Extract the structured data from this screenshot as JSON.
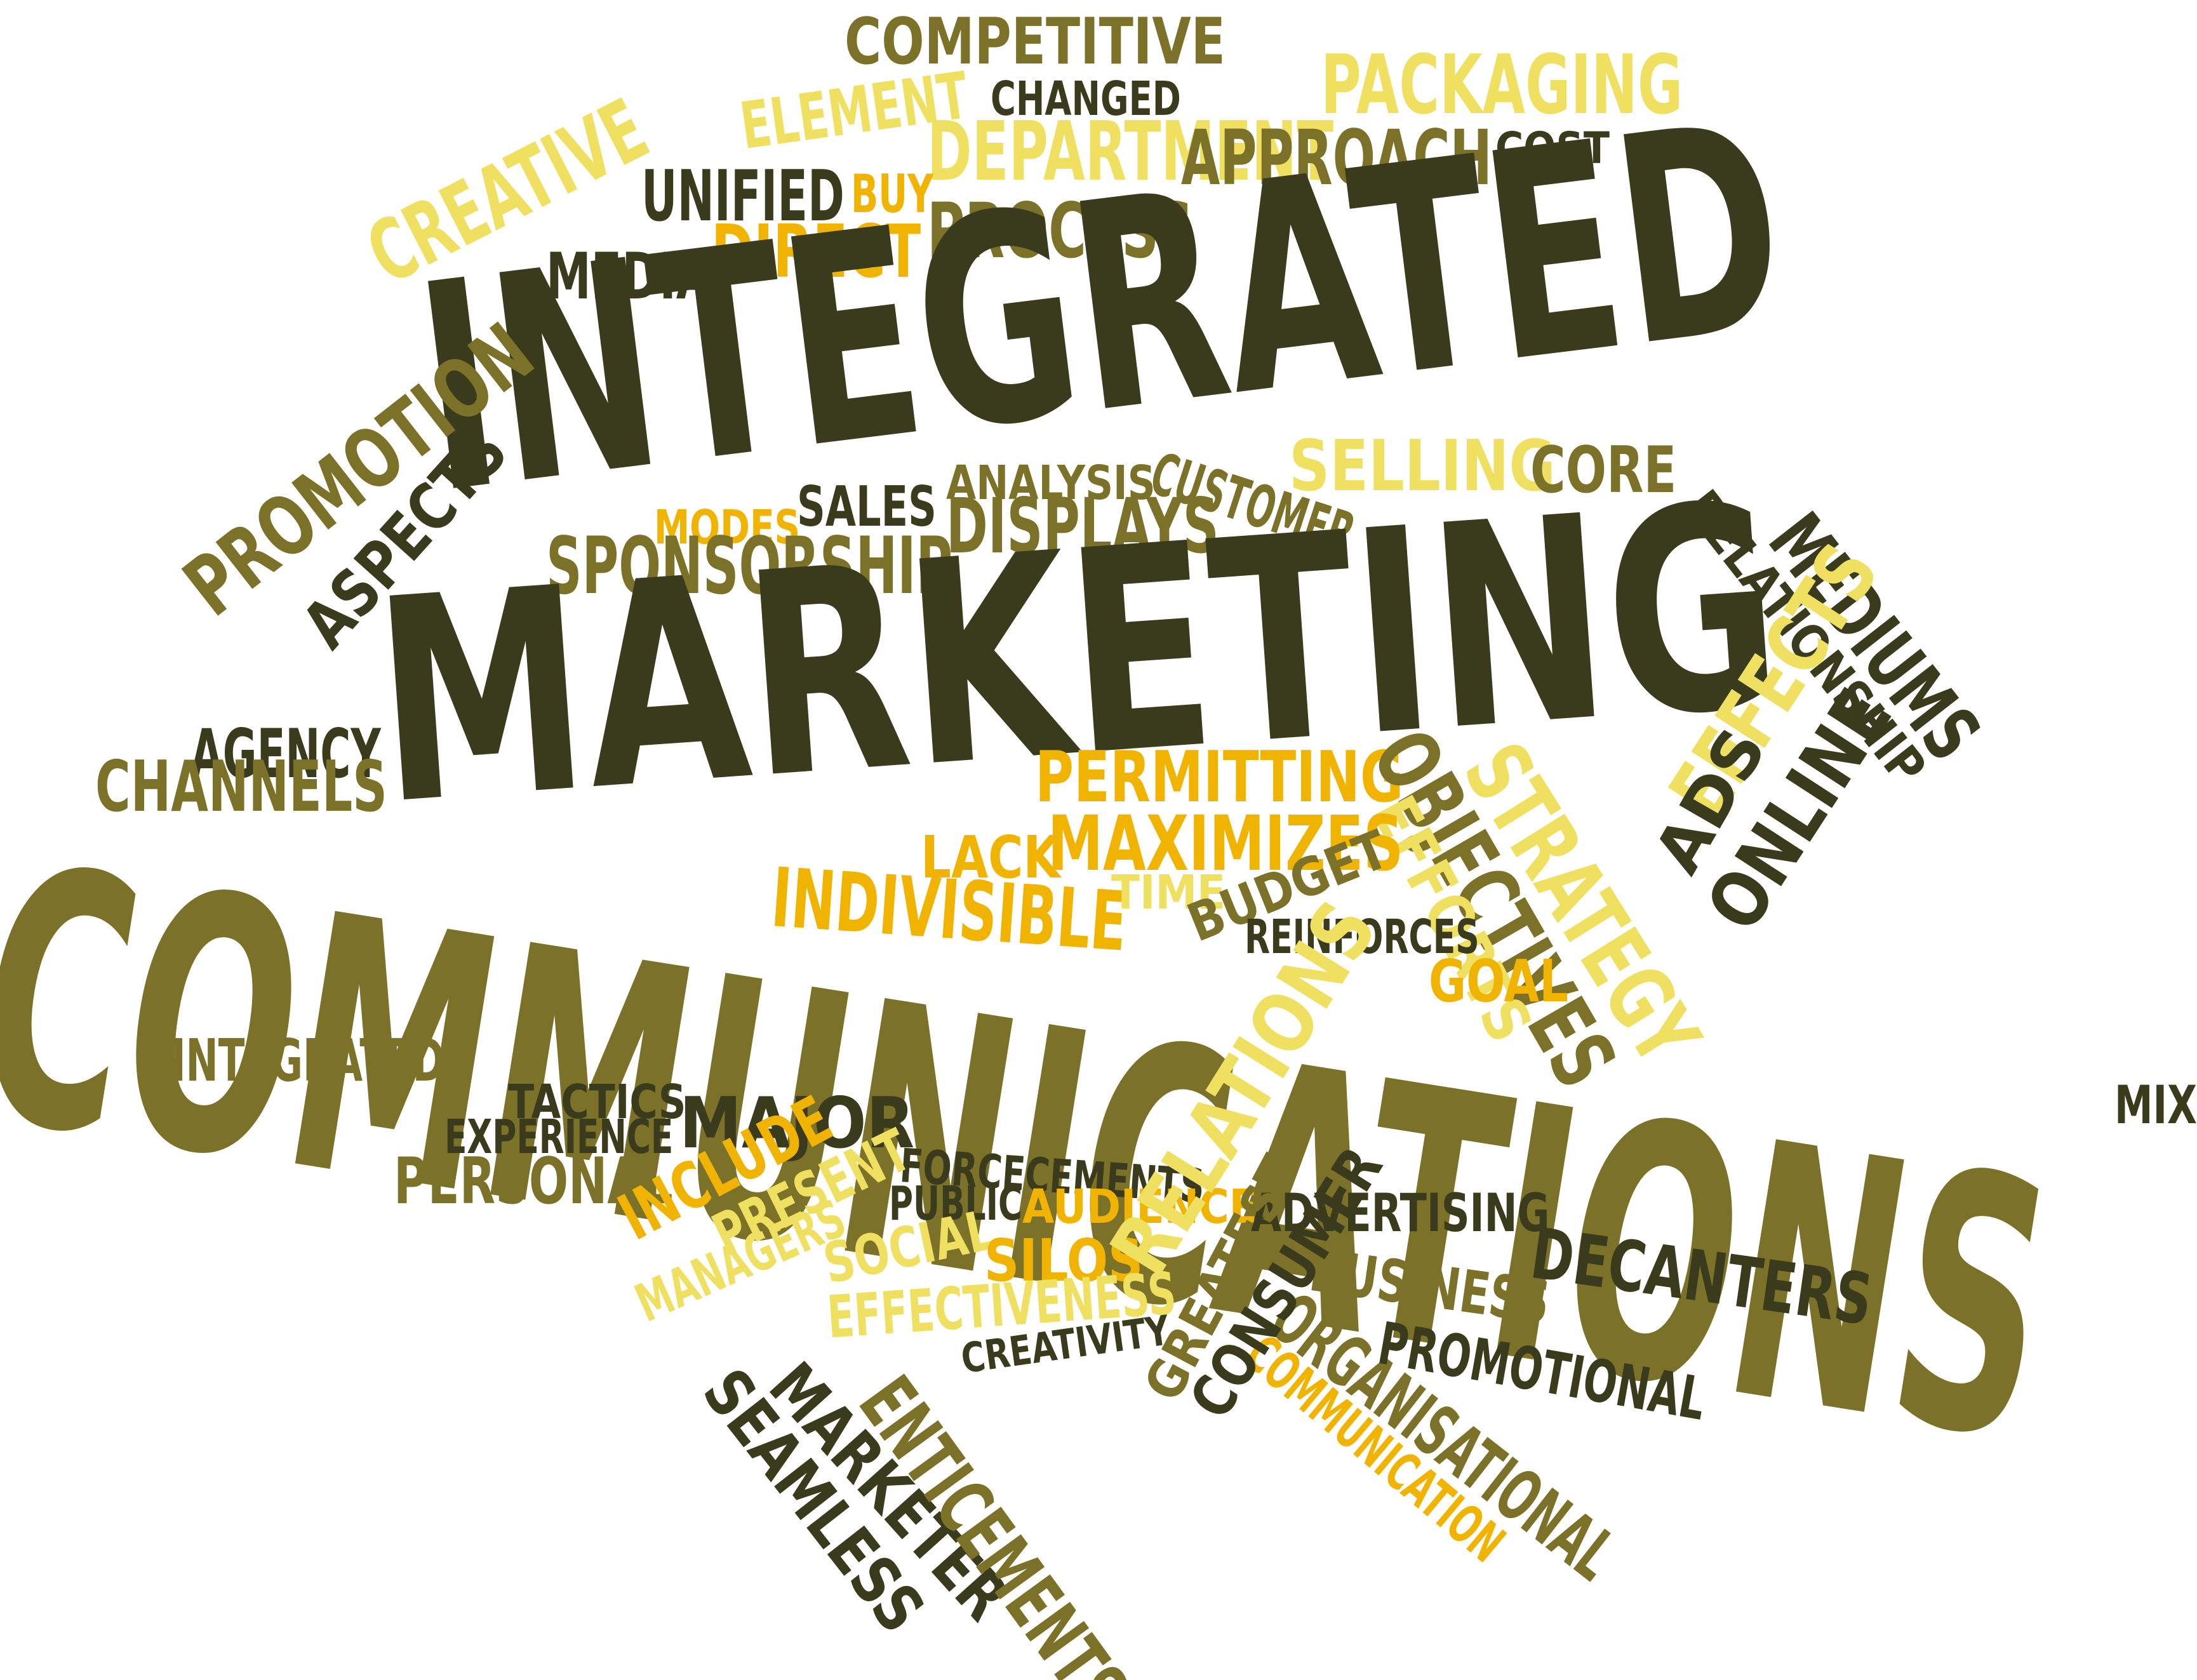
{
  "palette": {
    "dark_olive": "#3a3a1d",
    "olive": "#7b7128",
    "pale_yellow": "#f0e061",
    "amber": "#f0b400",
    "background": "#ffffff"
  },
  "words": {
    "competitive": "COMPETITIVE",
    "element": "ELEMENT",
    "changed": "CHANGED",
    "department": "DEPARTMENT",
    "packaging": "PACKAGING",
    "unified": "UNIFIED",
    "buy": "BUY",
    "approach": "APPROACH",
    "cost": "COST",
    "creative": "CREATIVE",
    "media": "MEDIA",
    "direct": "DIRECT",
    "process": "PROCESS",
    "integrated_main": "INTEGRATED",
    "selling": "SELLING",
    "customer": "CUSTOMER",
    "core": "CORE",
    "analysis": "ANALYSIS",
    "modes": "MODES",
    "sales": "SALES",
    "sponsorship": "SPONSORSHIP",
    "displays": "DISPLAYS",
    "promotion": "PROMOTION",
    "aspects": "ASPECTS",
    "relationship": "RELATIONSHIP",
    "mediums": "MEDIUMS",
    "marketing": "MARKETING",
    "agency": "AGENCY",
    "channels": "CHANNELS",
    "permitting": "PERMITTING",
    "objectives": "OBJECTIVES",
    "strategy": "STRATEGY",
    "effects": "EFFECTS",
    "ads": "ADS",
    "online": "ONLINE",
    "efforts": "EFFORTS",
    "lack": "LACK",
    "maximizes": "MAXIMIZES",
    "indivisible": "INDIVISIBLE",
    "time": "TIME",
    "budget": "BUDGET",
    "reinforces": "REINFORCES",
    "goal": "GOAL",
    "communications": "COMMUNICATIONS",
    "mix": "MIX",
    "integrated_small": "INTEGRATED",
    "tactics": "TACTICS",
    "experience": "EXPERIENCE",
    "major": "MAJOR",
    "forcecements": "FORCECEMENTS",
    "personal": "PERSONAL",
    "public": "PUBLIC",
    "audience": "AUDIENCE",
    "advertising": "ADVERTISING",
    "include": "INCLUDE",
    "present": "PRESENT",
    "social": "SOCIAL",
    "silos": "SILOS",
    "decanters": "DECANTERS",
    "business": "BUSINESS",
    "managers": "MANAGERS",
    "effectiveness": "EFFECTIVENESS",
    "relations": "RELATIONS",
    "organisational": "ORGANISATIONAL",
    "promotional": "PROMOTIONAL",
    "creativity": "CREATIVITY",
    "communication": "COMMUNICATION",
    "seamless": "SEAMLESS",
    "marketer": "MARKETER",
    "enticements": "ENTICEMENTS",
    "greatest": "GREATEST",
    "consumer": "CONSUMER"
  }
}
